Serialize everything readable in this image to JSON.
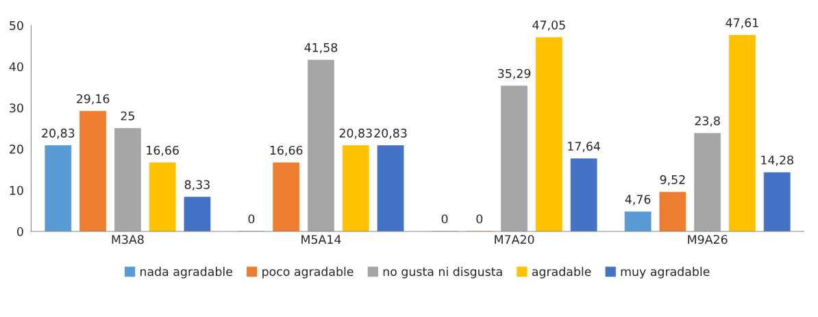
{
  "chart_data": {
    "type": "bar",
    "categories": [
      "M3A8",
      "M5A14",
      "M7A20",
      "M9A26"
    ],
    "series": [
      {
        "name": "nada agradable",
        "color": "#5b9bd5",
        "values": [
          20.83,
          0,
          0,
          4.76
        ],
        "value_labels": [
          "20,83",
          "0",
          "0",
          "4,76"
        ]
      },
      {
        "name": "poco agradable",
        "color": "#ed7d31",
        "values": [
          29.16,
          16.66,
          0,
          9.52
        ],
        "value_labels": [
          "29,16",
          "16,66",
          "0",
          "9,52"
        ]
      },
      {
        "name": "no gusta ni disgusta",
        "color": "#a5a5a5",
        "values": [
          25,
          41.58,
          35.29,
          23.8
        ],
        "value_labels": [
          "25",
          "41,58",
          "35,29",
          "23,8"
        ]
      },
      {
        "name": "agradable",
        "color": "#ffc000",
        "values": [
          16.66,
          20.83,
          47.05,
          47.61
        ],
        "value_labels": [
          "16,66",
          "20,83",
          "47,05",
          "47,61"
        ]
      },
      {
        "name": "muy agradable",
        "color": "#4472c4",
        "values": [
          8.33,
          20.83,
          17.64,
          14.28
        ],
        "value_labels": [
          "8,33",
          "20,83",
          "17,64",
          "14,28"
        ]
      }
    ],
    "ylim": [
      0,
      50
    ],
    "yticks": [
      0,
      10,
      20,
      30,
      40,
      50
    ],
    "grid": false,
    "legend": "bottom"
  }
}
